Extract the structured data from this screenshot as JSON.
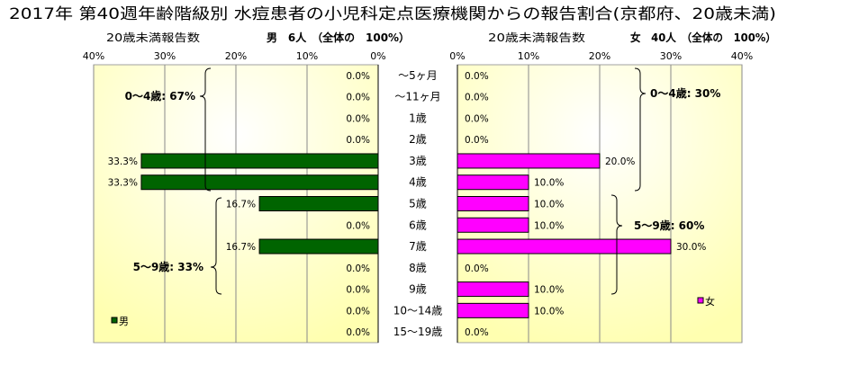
{
  "chart_data": {
    "type": "bar",
    "orientation": "horizontal",
    "title": "2017年 第40週年齢階級別 水痘患者の小児科定点医療機関からの報告割合(京都府、20歳未満)",
    "categories": [
      "～5ヶ月",
      "～11ヶ月",
      "1歳",
      "2歳",
      "3歳",
      "4歳",
      "5歳",
      "6歳",
      "7歳",
      "8歳",
      "9歳",
      "10～14歳",
      "15～19歳"
    ],
    "xlim": [
      0,
      40
    ],
    "xticks": [
      "0%",
      "10%",
      "20%",
      "30%",
      "40%"
    ],
    "grid": true,
    "panels": [
      {
        "count_label": "20歳未満報告数",
        "header": "男　6人　（全体の　100%）",
        "annotations": [
          "0～4歳: 67%",
          "5～9歳: 33%"
        ],
        "legend": "bottom-left"
      },
      {
        "count_label": "20歳未満報告数",
        "header": "女　40人　（全体の　100%）",
        "annotations": [
          "0～4歳: 30%",
          "5～9歳: 60%"
        ],
        "legend": "right"
      }
    ],
    "series": [
      {
        "name": "男",
        "color": "#006400",
        "values": [
          0,
          0,
          0,
          0,
          33.3,
          33.3,
          16.7,
          0,
          16.7,
          0,
          0,
          0,
          0
        ],
        "labels": [
          "0.0%",
          "0.0%",
          "0.0%",
          "0.0%",
          "33.3%",
          "33.3%",
          "16.7%",
          "0.0%",
          "16.7%",
          "0.0%",
          "0.0%",
          "0.0%",
          "0.0%"
        ]
      },
      {
        "name": "女",
        "color": "#ff00ff",
        "values": [
          0,
          0,
          0,
          0,
          20,
          10,
          10,
          10,
          30,
          0,
          10,
          10,
          0
        ],
        "labels": [
          "0.0%",
          "0.0%",
          "0.0%",
          "0.0%",
          "20.0%",
          "10.0%",
          "10.0%",
          "10.0%",
          "30.0%",
          "0.0%",
          "10.0%",
          "10.0%",
          "0.0%"
        ]
      }
    ]
  }
}
